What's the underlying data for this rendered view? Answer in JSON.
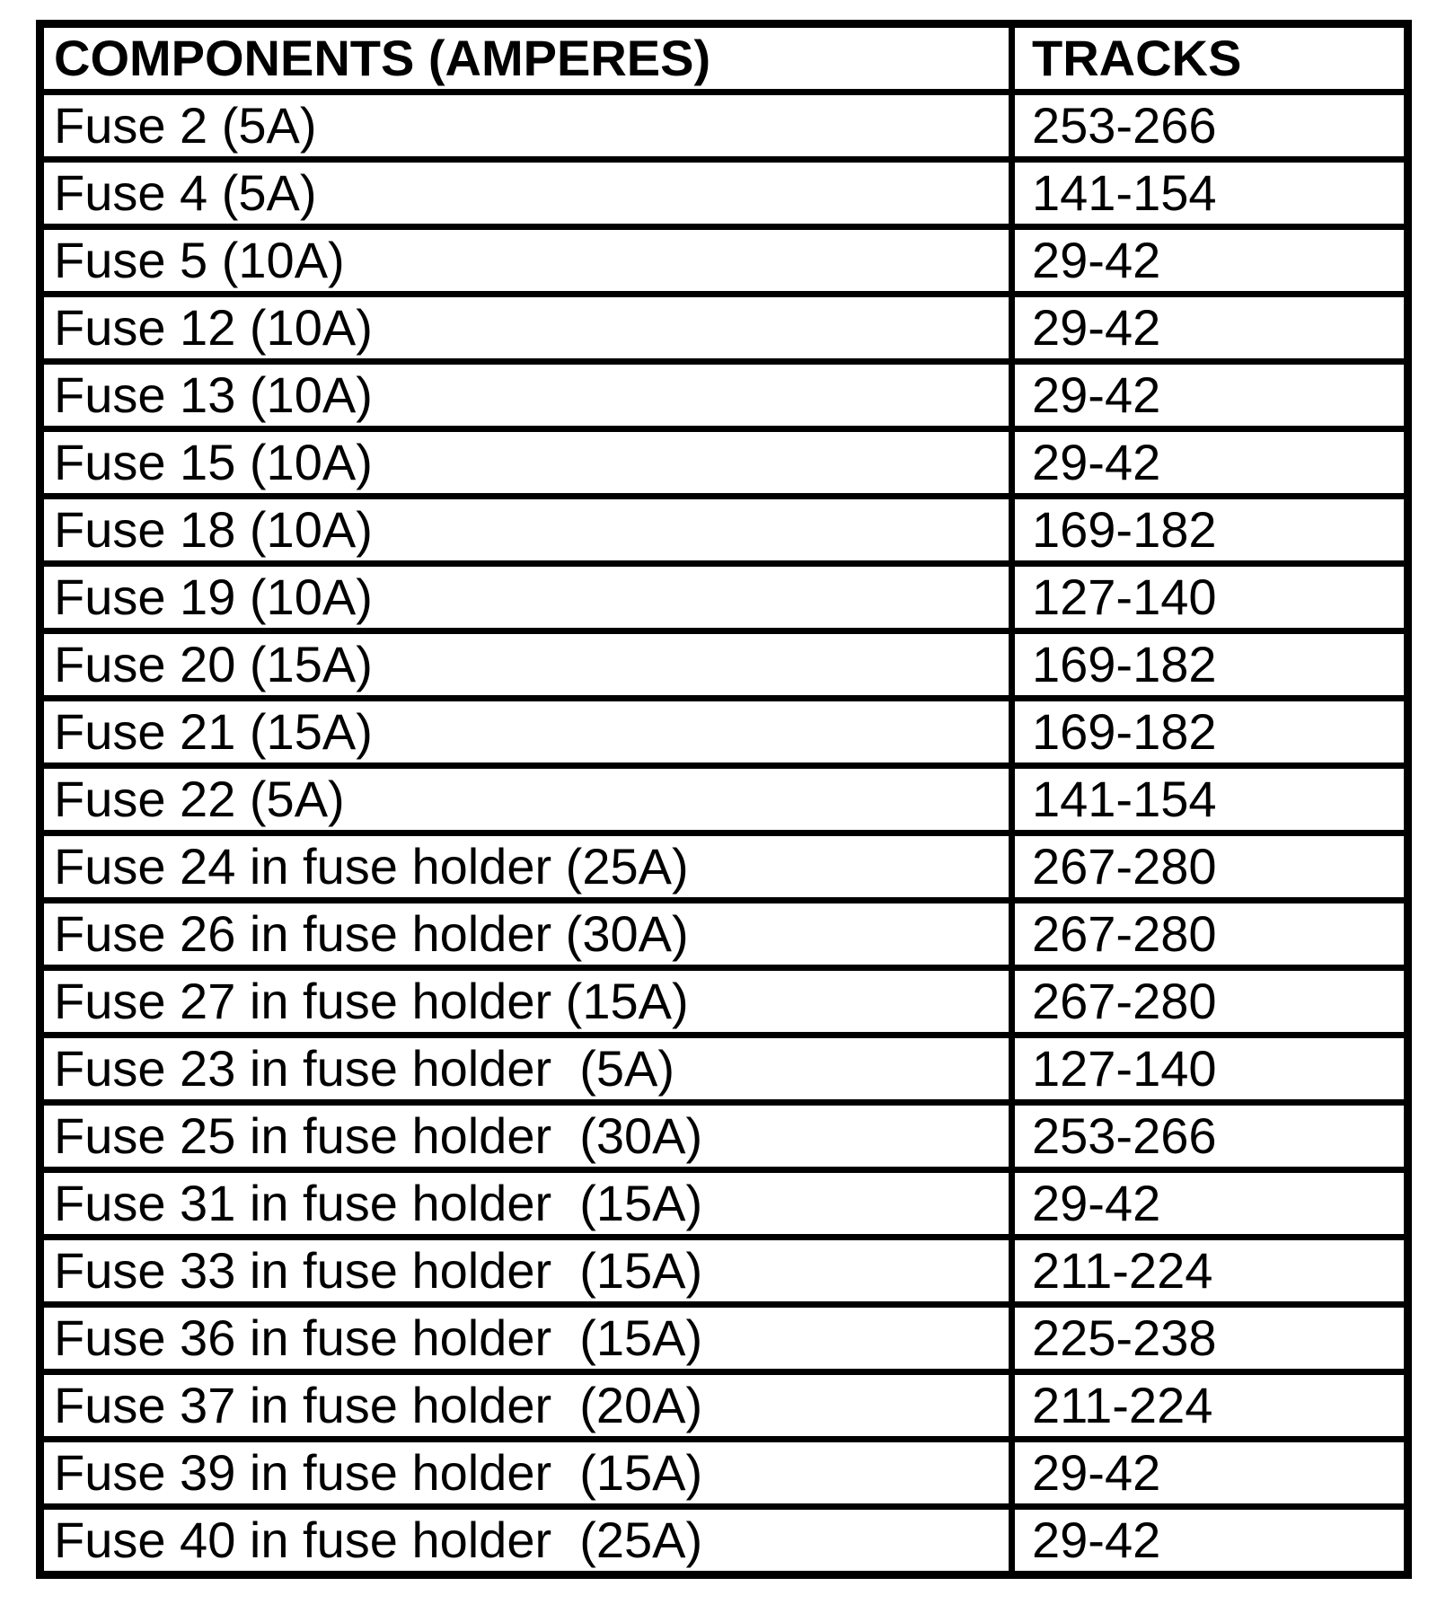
{
  "table": {
    "headers": {
      "components": "COMPONENTS (AMPERES)",
      "tracks": "TRACKS"
    },
    "rows": [
      {
        "component": "Fuse 2 (5A)",
        "tracks": "253-266"
      },
      {
        "component": "Fuse 4 (5A)",
        "tracks": "141-154"
      },
      {
        "component": "Fuse 5 (10A)",
        "tracks": "29-42"
      },
      {
        "component": "Fuse 12 (10A)",
        "tracks": "29-42"
      },
      {
        "component": "Fuse 13 (10A)",
        "tracks": "29-42"
      },
      {
        "component": "Fuse 15 (10A)",
        "tracks": "29-42"
      },
      {
        "component": "Fuse 18 (10A)",
        "tracks": "169-182"
      },
      {
        "component": "Fuse 19 (10A)",
        "tracks": "127-140"
      },
      {
        "component": "Fuse 20 (15A)",
        "tracks": "169-182"
      },
      {
        "component": "Fuse 21 (15A)",
        "tracks": "169-182"
      },
      {
        "component": "Fuse 22 (5A)",
        "tracks": "141-154"
      },
      {
        "component": "Fuse 24 in fuse holder (25A)",
        "tracks": "267-280"
      },
      {
        "component": "Fuse 26 in fuse holder (30A)",
        "tracks": "267-280"
      },
      {
        "component": "Fuse 27 in fuse holder (15A)",
        "tracks": "267-280"
      },
      {
        "component": "Fuse 23 in fuse holder  (5A)",
        "tracks": "127-140"
      },
      {
        "component": "Fuse 25 in fuse holder  (30A)",
        "tracks": "253-266"
      },
      {
        "component": "Fuse 31 in fuse holder  (15A)",
        "tracks": "29-42"
      },
      {
        "component": "Fuse 33 in fuse holder  (15A)",
        "tracks": "211-224"
      },
      {
        "component": "Fuse 36 in fuse holder  (15A)",
        "tracks": "225-238"
      },
      {
        "component": "Fuse 37 in fuse holder  (20A)",
        "tracks": "211-224"
      },
      {
        "component": "Fuse 39 in fuse holder  (15A)",
        "tracks": "29-42"
      },
      {
        "component": "Fuse 40 in fuse holder  (25A)",
        "tracks": "29-42"
      }
    ]
  }
}
